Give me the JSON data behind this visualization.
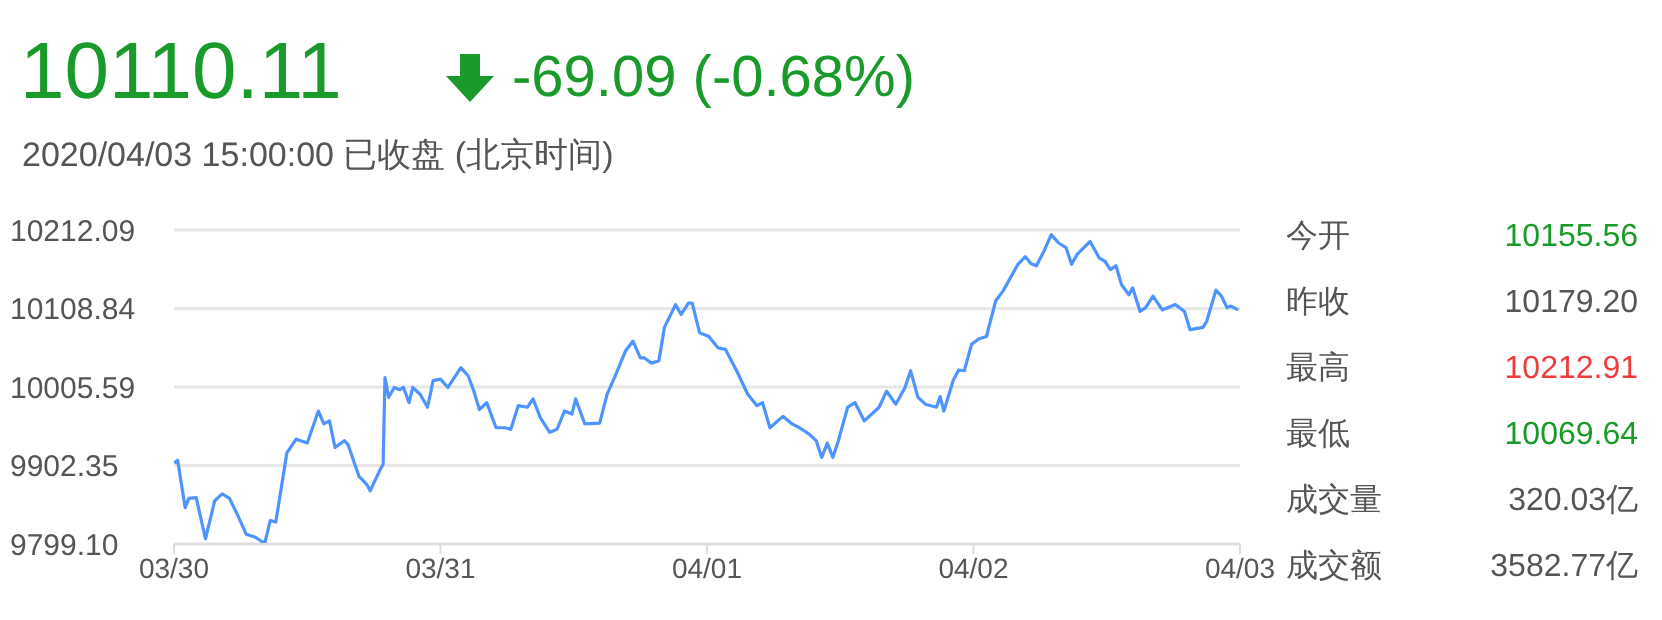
{
  "chart_data": {
    "type": "line",
    "title": "10110.11",
    "subtitle": "2020/04/03 15:00:00 已收盘 (北京时间)",
    "annotations": [
      "-69.09 (-0.68%)",
      "今开",
      "10155.56",
      "昨收",
      "10179.20",
      "最高",
      "10212.91",
      "最低",
      "10069.64",
      "成交量",
      "320.03亿",
      "成交额",
      "3582.77亿"
    ],
    "xlim": [
      "2020-03-30",
      "2020-04-03"
    ],
    "xticks": [
      {
        "value": "2020-03-30",
        "label": "03/30"
      },
      {
        "value": "2020-03-31",
        "label": "03/31"
      },
      {
        "value": "2020-04-01",
        "label": "04/01"
      },
      {
        "value": "2020-04-02",
        "label": "04/02"
      },
      {
        "value": "2020-04-03",
        "label": "04/03"
      }
    ],
    "ylim": [
      9799.1,
      10212.09
    ],
    "yticks": [
      {
        "value": 9799.1,
        "label": "9799.10"
      },
      {
        "value": 9902.35,
        "label": "9902.35"
      },
      {
        "value": 10005.59,
        "label": "10005.59"
      },
      {
        "value": 10108.84,
        "label": "10108.84"
      },
      {
        "value": 10212.09,
        "label": "10212.09"
      }
    ],
    "grid": "y",
    "marker": "none",
    "line_style": "solid",
    "series": [
      {
        "color": "#4d94ff",
        "x": [
          "2020-03-30T00:00",
          "2020-03-30T00:20",
          "2020-03-30T01:00",
          "2020-03-30T01:20",
          "2020-03-30T02:00",
          "2020-03-30T02:50",
          "2020-03-30T03:40",
          "2020-03-30T04:20",
          "2020-03-30T05:00",
          "2020-03-30T05:40",
          "2020-03-30T06:30",
          "2020-03-30T07:20",
          "2020-03-30T08:10",
          "2020-03-30T08:40",
          "2020-03-30T09:10",
          "2020-03-30T10:10",
          "2020-03-30T11:00",
          "2020-03-30T12:00",
          "2020-03-30T13:00",
          "2020-03-30T13:30",
          "2020-03-30T14:00",
          "2020-03-30T14:30",
          "2020-03-30T15:20",
          "2020-03-30T15:40",
          "2020-03-30T16:40",
          "2020-03-30T17:20",
          "2020-03-30T17:40",
          "2020-03-30T18:30",
          "2020-03-30T18:50",
          "2020-03-30T19:00",
          "2020-03-30T19:20",
          "2020-03-30T19:50",
          "2020-03-30T20:20",
          "2020-03-30T20:40",
          "2020-03-30T21:10",
          "2020-03-30T21:30",
          "2020-03-30T22:10",
          "2020-03-30T22:50",
          "2020-03-30T23:20",
          "2020-03-31T00:00",
          "2020-03-31T00:40",
          "2020-03-31T01:50",
          "2020-03-31T02:30",
          "2020-03-31T03:00",
          "2020-03-31T03:30",
          "2020-03-31T04:10",
          "2020-03-31T05:00",
          "2020-03-31T05:50",
          "2020-03-31T06:20",
          "2020-03-31T07:00",
          "2020-03-31T07:50",
          "2020-03-31T08:20",
          "2020-03-31T09:00",
          "2020-03-31T09:50",
          "2020-03-31T10:30",
          "2020-03-31T11:10",
          "2020-03-31T11:50",
          "2020-03-31T12:10",
          "2020-03-31T13:00",
          "2020-03-31T14:20",
          "2020-03-31T15:00",
          "2020-03-31T15:40",
          "2020-03-31T16:40",
          "2020-03-31T17:20",
          "2020-03-31T18:00",
          "2020-03-31T18:20",
          "2020-03-31T19:00",
          "2020-03-31T19:40",
          "2020-03-31T20:10",
          "2020-03-31T21:10",
          "2020-03-31T21:40",
          "2020-03-31T22:20",
          "2020-03-31T22:40",
          "2020-03-31T23:20",
          "2020-04-01T00:10",
          "2020-04-01T01:00",
          "2020-04-01T01:40",
          "2020-04-01T02:40",
          "2020-04-01T03:40",
          "2020-04-01T04:30",
          "2020-04-01T05:00",
          "2020-04-01T05:40",
          "2020-04-01T06:50",
          "2020-04-01T07:40",
          "2020-04-01T08:20",
          "2020-04-01T09:10",
          "2020-04-01T09:50",
          "2020-04-01T10:20",
          "2020-04-01T10:50",
          "2020-04-01T11:20",
          "2020-04-01T11:50",
          "2020-04-01T12:40",
          "2020-04-01T13:20",
          "2020-04-01T14:10",
          "2020-04-01T15:30",
          "2020-04-01T16:10",
          "2020-04-01T17:00",
          "2020-04-01T17:50",
          "2020-04-01T18:20",
          "2020-04-01T19:00",
          "2020-04-01T19:40",
          "2020-04-01T20:40",
          "2020-04-01T21:00",
          "2020-04-01T21:20",
          "2020-04-01T22:10",
          "2020-04-01T22:40",
          "2020-04-01T23:10",
          "2020-04-01T23:50",
          "2020-04-02T00:30",
          "2020-04-02T01:10",
          "2020-04-02T02:00",
          "2020-04-02T02:40",
          "2020-04-02T04:00",
          "2020-04-02T04:40",
          "2020-04-02T05:10",
          "2020-04-02T05:40",
          "2020-04-02T06:20",
          "2020-04-02T07:00",
          "2020-04-02T07:40",
          "2020-04-02T08:20",
          "2020-04-02T08:50",
          "2020-04-02T09:20",
          "2020-04-02T10:30",
          "2020-04-02T11:20",
          "2020-04-02T11:50",
          "2020-04-02T12:20",
          "2020-04-02T12:50",
          "2020-04-02T13:20",
          "2020-04-02T14:00",
          "2020-04-02T14:20",
          "2020-04-02T15:00",
          "2020-04-02T15:30",
          "2020-04-02T16:10",
          "2020-04-02T17:00",
          "2020-04-02T18:10",
          "2020-04-02T19:00",
          "2020-04-02T19:30",
          "2020-04-02T20:40",
          "2020-04-02T21:00",
          "2020-04-02T21:50",
          "2020-04-02T22:20",
          "2020-04-02T22:50",
          "2020-04-02T23:10",
          "2020-04-02T23:50"
        ],
        "values": [
          9906,
          9909,
          9847,
          9859,
          9860,
          9806,
          9856,
          9865,
          9859,
          9839,
          9812,
          9808,
          9800,
          9830,
          9828,
          9919,
          9937,
          9932,
          9974,
          9957,
          9961,
          9926,
          9935,
          9930,
          9888,
          9878,
          9869,
          9895,
          9904,
          10018,
          9992,
          10005,
          10002,
          10005,
          9985,
          10005,
          9996,
          9979,
          10014,
          10016,
          10005,
          10031,
          10020,
          10000,
          9976,
          9985,
          9952,
          9952,
          9950,
          9981,
          9979,
          9990,
          9965,
          9946,
          9950,
          9974,
          9970,
          9990,
          9957,
          9958,
          9996,
          10018,
          10053,
          10066,
          10044,
          10044,
          10037,
          10040,
          10084,
          10114,
          10101,
          10116,
          10116,
          10077,
          10072,
          10057,
          10055,
          10027,
          9996,
          9981,
          9985,
          9952,
          9967,
          9957,
          9952,
          9944,
          9935,
          9913,
          9932,
          9913,
          9935,
          9979,
          9985,
          9961,
          9979,
          10000,
          9983,
          10005,
          10027,
          9992,
          9983,
          9979,
          9993,
          9974,
          10014,
          10028,
          10027,
          10062,
          10069,
          10072,
          10119,
          10132,
          10167,
          10177,
          10168,
          10165,
          10184,
          10206,
          10195,
          10189,
          10167,
          10180,
          10197,
          10175,
          10171,
          10160,
          10165,
          10140,
          10127,
          10136,
          10105,
          10110,
          10125,
          10107,
          10114,
          10105,
          10081,
          10084,
          10092,
          10133,
          10125,
          10110,
          10112,
          10107
        ]
      }
    ]
  }
}
